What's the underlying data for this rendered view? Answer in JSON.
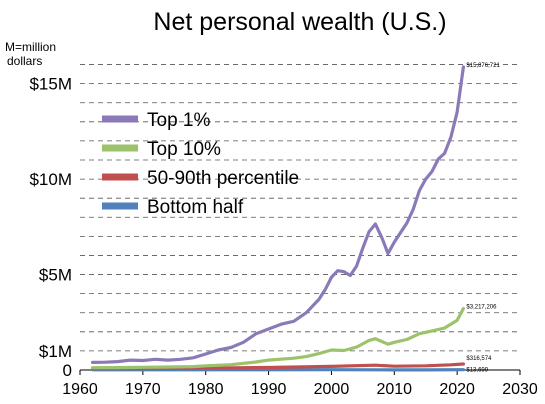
{
  "chart_data": {
    "type": "line",
    "title": "Net personal wealth (U.S.)",
    "unit_note": [
      "M=million",
      "dollars"
    ],
    "xlabel": "",
    "ylabel": "",
    "xlim": [
      1960,
      2030
    ],
    "ylim": [
      0,
      16500000
    ],
    "x_ticks": [
      {
        "value": 1960,
        "label": "1960"
      },
      {
        "value": 1970,
        "label": "1970"
      },
      {
        "value": 1980,
        "label": "1980"
      },
      {
        "value": 1990,
        "label": "1990"
      },
      {
        "value": 2000,
        "label": "2000"
      },
      {
        "value": 2010,
        "label": "2010"
      },
      {
        "value": 2020,
        "label": "2020"
      },
      {
        "value": 2030,
        "label": "2030"
      }
    ],
    "y_ticks": [
      {
        "value": 0,
        "label": "0"
      },
      {
        "value": 1000000,
        "label": "$1M"
      },
      {
        "value": 5000000,
        "label": "$5M"
      },
      {
        "value": 10000000,
        "label": "$10M"
      },
      {
        "value": 15000000,
        "label": "$15M"
      }
    ],
    "grid": {
      "horizontal": true,
      "step": 1000000,
      "style": "dashed"
    },
    "legend": {
      "position": "top-left"
    },
    "series": [
      {
        "name": "Top 1%",
        "color": "#8b7ab8",
        "end_label": "$15,876,721",
        "points": [
          [
            1962,
            400000
          ],
          [
            1964,
            410000
          ],
          [
            1966,
            440000
          ],
          [
            1968,
            520000
          ],
          [
            1970,
            500000
          ],
          [
            1972,
            560000
          ],
          [
            1974,
            520000
          ],
          [
            1976,
            560000
          ],
          [
            1978,
            640000
          ],
          [
            1980,
            840000
          ],
          [
            1982,
            1050000
          ],
          [
            1984,
            1180000
          ],
          [
            1986,
            1450000
          ],
          [
            1988,
            1900000
          ],
          [
            1990,
            2150000
          ],
          [
            1992,
            2400000
          ],
          [
            1994,
            2550000
          ],
          [
            1996,
            3000000
          ],
          [
            1998,
            3700000
          ],
          [
            1999,
            4200000
          ],
          [
            2000,
            4850000
          ],
          [
            2001,
            5200000
          ],
          [
            2002,
            5150000
          ],
          [
            2003,
            4950000
          ],
          [
            2004,
            5450000
          ],
          [
            2005,
            6400000
          ],
          [
            2006,
            7250000
          ],
          [
            2007,
            7650000
          ],
          [
            2008,
            6950000
          ],
          [
            2009,
            6100000
          ],
          [
            2010,
            6700000
          ],
          [
            2011,
            7200000
          ],
          [
            2012,
            7700000
          ],
          [
            2013,
            8400000
          ],
          [
            2014,
            9400000
          ],
          [
            2015,
            10000000
          ],
          [
            2016,
            10400000
          ],
          [
            2017,
            11050000
          ],
          [
            2018,
            11350000
          ],
          [
            2019,
            12200000
          ],
          [
            2020,
            13500000
          ],
          [
            2021,
            15876721
          ]
        ]
      },
      {
        "name": "Top 10%",
        "color": "#9cc36b",
        "end_label": "$3,217,206",
        "points": [
          [
            1962,
            120000
          ],
          [
            1966,
            125000
          ],
          [
            1970,
            140000
          ],
          [
            1974,
            155000
          ],
          [
            1978,
            180000
          ],
          [
            1980,
            220000
          ],
          [
            1984,
            280000
          ],
          [
            1988,
            420000
          ],
          [
            1990,
            520000
          ],
          [
            1994,
            620000
          ],
          [
            1996,
            700000
          ],
          [
            1998,
            860000
          ],
          [
            2000,
            1050000
          ],
          [
            2002,
            1020000
          ],
          [
            2004,
            1200000
          ],
          [
            2006,
            1550000
          ],
          [
            2007,
            1640000
          ],
          [
            2009,
            1350000
          ],
          [
            2010,
            1450000
          ],
          [
            2012,
            1600000
          ],
          [
            2014,
            1900000
          ],
          [
            2016,
            2050000
          ],
          [
            2018,
            2200000
          ],
          [
            2020,
            2600000
          ],
          [
            2021,
            3217206
          ]
        ]
      },
      {
        "name": "50-90th percentile",
        "color": "#c0504d",
        "end_label": "$316,574",
        "points": [
          [
            1962,
            70000
          ],
          [
            1970,
            80000
          ],
          [
            1980,
            100000
          ],
          [
            1990,
            130000
          ],
          [
            2000,
            190000
          ],
          [
            2007,
            250000
          ],
          [
            2010,
            200000
          ],
          [
            2015,
            220000
          ],
          [
            2019,
            270000
          ],
          [
            2021,
            316574
          ]
        ]
      },
      {
        "name": "Bottom half",
        "color": "#4f81bd",
        "end_label": "$13,699",
        "points": [
          [
            1962,
            10000
          ],
          [
            1980,
            12000
          ],
          [
            2000,
            14000
          ],
          [
            2007,
            12000
          ],
          [
            2010,
            4000
          ],
          [
            2015,
            6000
          ],
          [
            2021,
            13699
          ]
        ]
      }
    ]
  }
}
